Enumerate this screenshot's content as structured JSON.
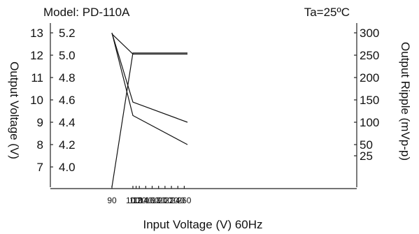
{
  "header": {
    "model": "Model: PD-110A",
    "ambient": "Ta=25ºC"
  },
  "chart_data": {
    "type": "line",
    "xlabel": "Input Voltage (V) 60Hz",
    "ylabel_left": "Output Voltage (V)",
    "ylabel_right": "Output Ripple (mVp-p)",
    "x_ticks": [
      "90",
      "100",
      "110",
      "120",
      "140",
      "160",
      "180",
      "200",
      "220",
      "240",
      "260"
    ],
    "left_axis_outer_ticks": [
      "13",
      "12",
      "11",
      "10",
      "9",
      "8",
      "7"
    ],
    "left_axis_inner_ticks": [
      "5.2",
      "5.0",
      "4.8",
      "4.6",
      "4.4",
      "4.2",
      "4.0"
    ],
    "right_axis_ticks": [
      "300",
      "250",
      "200",
      "150",
      "100",
      "50",
      "25"
    ],
    "series": [
      {
        "axis": "left-outer",
        "x": [
          90,
          100,
          270
        ],
        "y": [
          12.95,
          12.05,
          12.05
        ]
      },
      {
        "axis": "left-inner",
        "x": [
          90,
          100,
          270
        ],
        "y": [
          3.82,
          5.02,
          5.02
        ]
      },
      {
        "axis": "right",
        "x": [
          90,
          100,
          270
        ],
        "y": [
          300,
          145,
          100
        ]
      },
      {
        "axis": "right",
        "x": [
          90,
          100,
          270
        ],
        "y": [
          300,
          115,
          50
        ]
      }
    ]
  }
}
